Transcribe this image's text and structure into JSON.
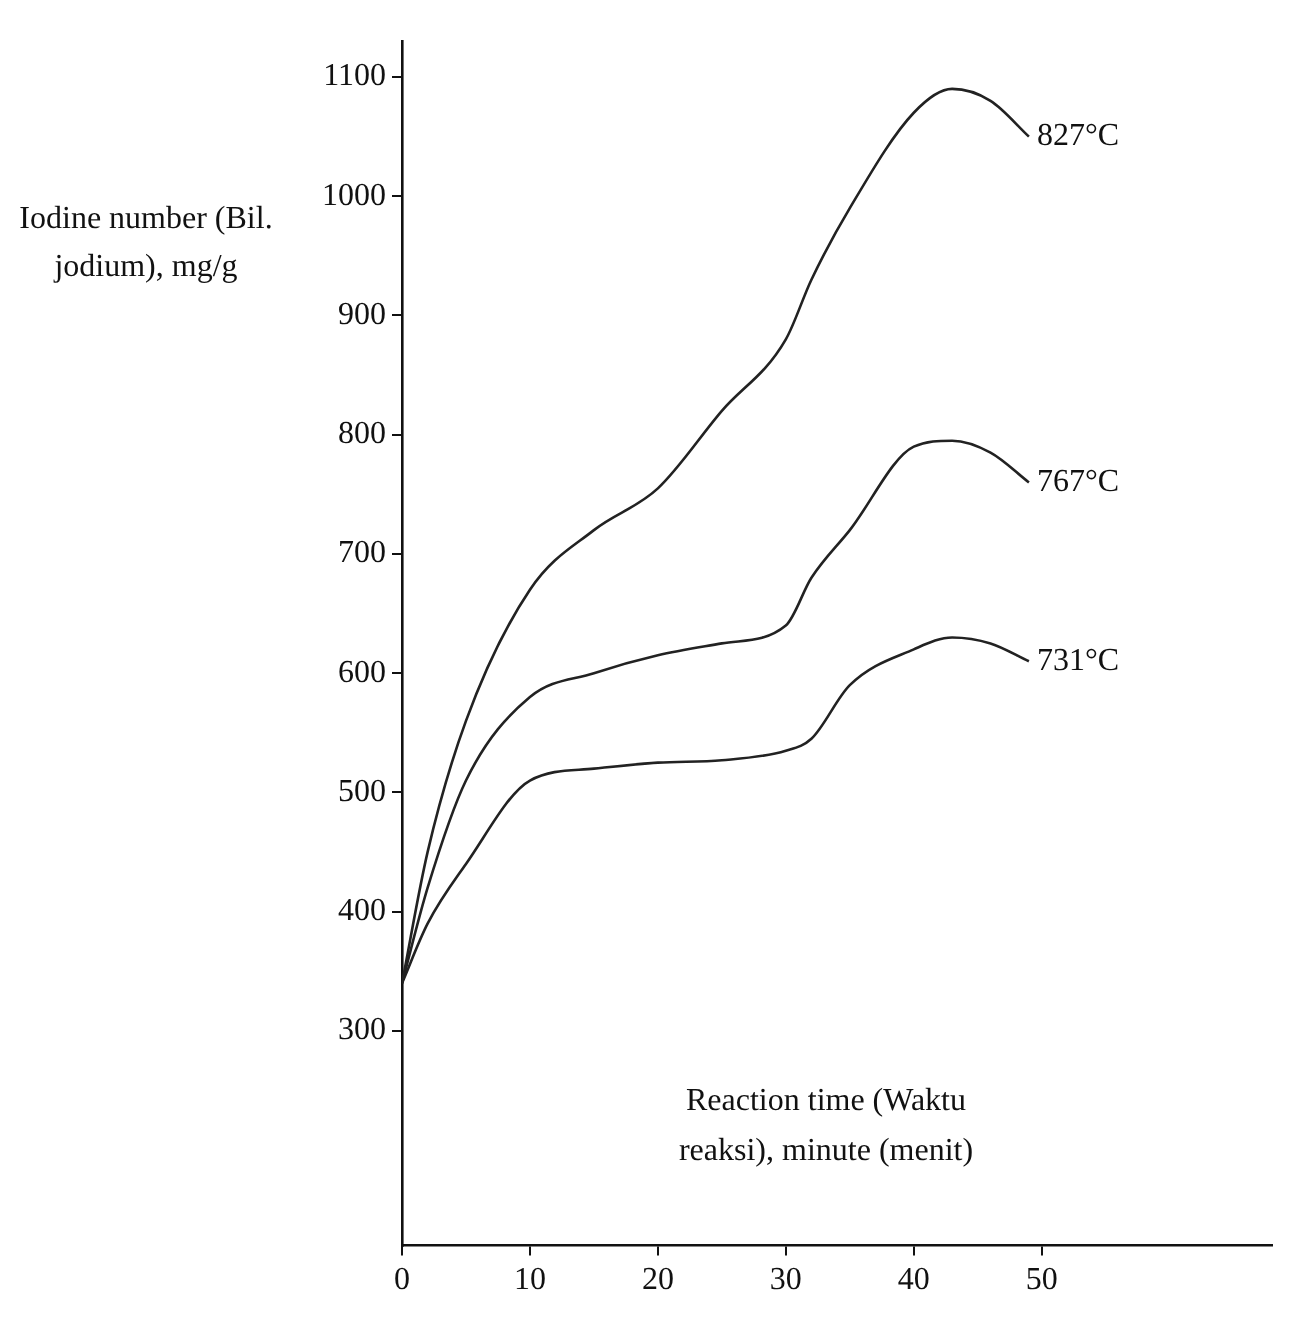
{
  "chart_data": {
    "type": "line",
    "xlabel": "Reaction time (Waktu reaksi), minute (menit)",
    "ylabel": "Iodine number (Bil. jodium), mg/g",
    "x": [
      0,
      2,
      5,
      10,
      15,
      20,
      25,
      30,
      32,
      35,
      40,
      43,
      46,
      49
    ],
    "series": [
      {
        "name": "827°C",
        "color": "#222222",
        "values": [
          340,
          450,
          560,
          670,
          720,
          755,
          820,
          880,
          930,
          990,
          1070,
          1090,
          1080,
          1050
        ]
      },
      {
        "name": "767°C",
        "color": "#222222",
        "values": [
          340,
          420,
          510,
          580,
          600,
          615,
          625,
          640,
          680,
          720,
          790,
          795,
          785,
          760
        ]
      },
      {
        "name": "731°C",
        "color": "#222222",
        "values": [
          340,
          390,
          440,
          510,
          520,
          525,
          527,
          535,
          545,
          590,
          620,
          630,
          625,
          610
        ]
      }
    ],
    "xlim": [
      0,
      68
    ],
    "xticks": [
      0,
      10,
      20,
      30,
      40,
      50
    ],
    "ylim": [
      120,
      1130
    ],
    "yticks": [
      300,
      400,
      500,
      600,
      700,
      800,
      900,
      1000,
      1100
    ],
    "grid": false,
    "legend": false,
    "marker": "none",
    "line_style": "solid"
  }
}
